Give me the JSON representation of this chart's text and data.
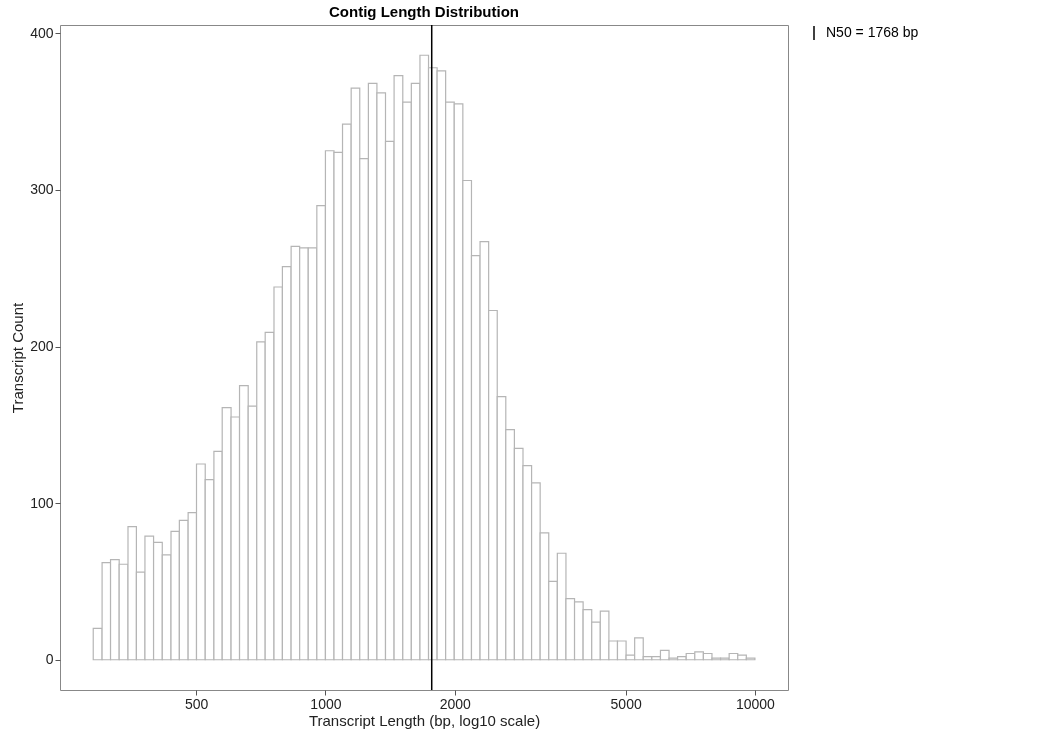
{
  "chart_data": {
    "type": "histogram",
    "title": "Contig Length Distribution",
    "xlabel": "Transcript Length (bp, log10 scale)",
    "ylabel": "Transcript Count",
    "bins": [
      288,
      302,
      316,
      331,
      347,
      363,
      380,
      398,
      417,
      437,
      457,
      479,
      501,
      525,
      550,
      575,
      603,
      631,
      661,
      692,
      724,
      759,
      794,
      832,
      871,
      912,
      955,
      1000,
      1047,
      1096,
      1148,
      1202,
      1259,
      1318,
      1380,
      1445,
      1514,
      1585,
      1660,
      1738,
      1820,
      1905,
      1995,
      2089,
      2188,
      2291,
      2399,
      2512,
      2630,
      2754,
      2884,
      3020,
      3162,
      3311,
      3467,
      3631,
      3802,
      3981,
      4169,
      4365,
      4571,
      4786,
      5012,
      5248,
      5495,
      5754,
      6026,
      6310,
      6607,
      6918,
      7244,
      7586,
      7943,
      8318,
      8710,
      9120,
      9550,
      10000
    ],
    "values": [
      20,
      62,
      64,
      61,
      85,
      56,
      79,
      75,
      67,
      82,
      89,
      94,
      125,
      115,
      133,
      161,
      155,
      175,
      162,
      203,
      209,
      238,
      251,
      264,
      263,
      263,
      290,
      325,
      324,
      342,
      365,
      320,
      368,
      362,
      331,
      373,
      356,
      368,
      386,
      378,
      376,
      356,
      355,
      306,
      258,
      267,
      223,
      168,
      147,
      135,
      124,
      113,
      81,
      50,
      68,
      39,
      37,
      32,
      24,
      31,
      12,
      12,
      3,
      14,
      2,
      2,
      6,
      1,
      2,
      4,
      5,
      4,
      1,
      1,
      4,
      3,
      1
    ],
    "color": "#b5b5b5",
    "log": "x",
    "xlim": [
      241,
      11940
    ],
    "xticks": [
      500,
      1000,
      2000,
      5000,
      10000
    ],
    "ylim": [
      -19.3,
      405.3
    ],
    "yticks": [
      0,
      100,
      200,
      300,
      400
    ],
    "grid": false,
    "legend": "right",
    "ref_lines": [
      {
        "axis": "x",
        "value": 1768,
        "label": "N50 = 1768 bp",
        "color": "#000000"
      }
    ]
  }
}
